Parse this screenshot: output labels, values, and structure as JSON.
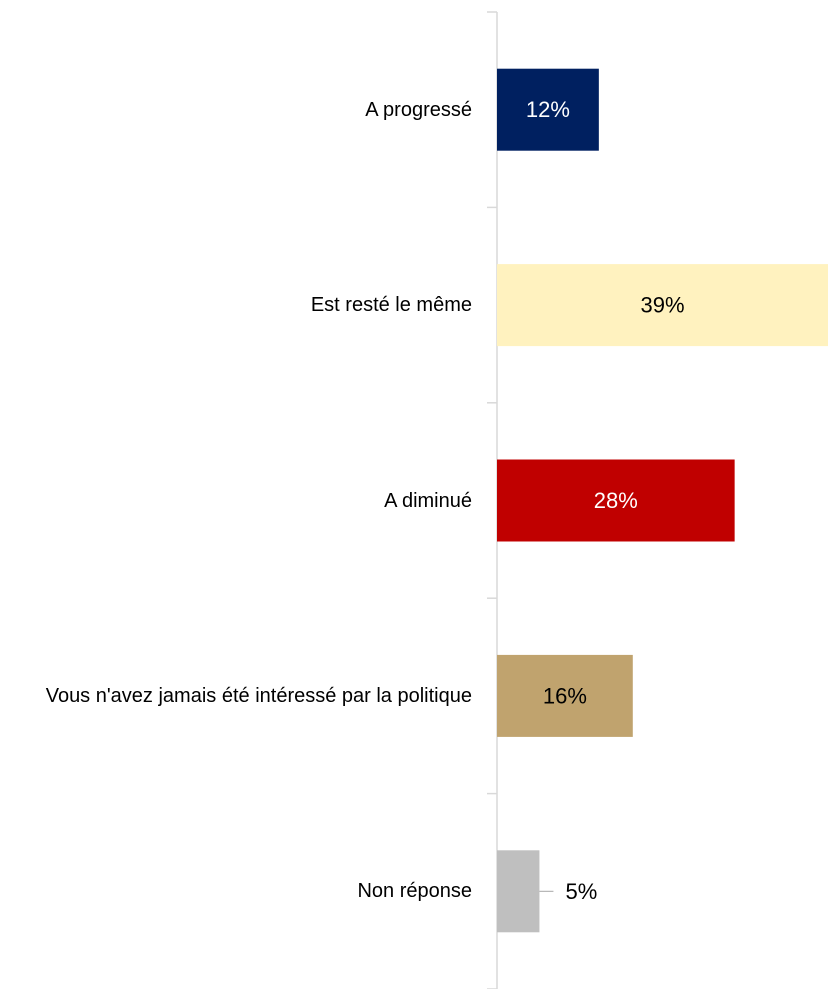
{
  "chart_data": {
    "type": "bar",
    "orientation": "horizontal",
    "categories": [
      "A progressé",
      "Est resté le même",
      "A diminué",
      "Vous n'avez jamais été intéressé par la politique",
      "Non réponse"
    ],
    "values": [
      12,
      39,
      28,
      16,
      5
    ],
    "value_labels": [
      "12%",
      "39%",
      "28%",
      "16%",
      "5%"
    ],
    "colors": [
      "#002060",
      "#fff2bf",
      "#c00000",
      "#c0a36e",
      "#bfbfbf"
    ]
  }
}
